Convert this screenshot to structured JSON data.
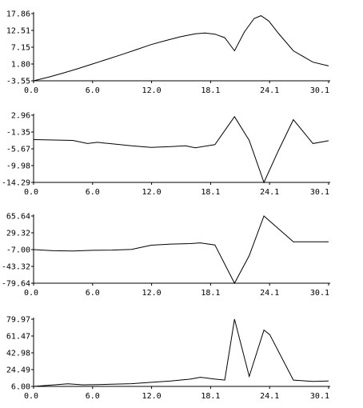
{
  "chart_data": [
    {
      "type": "line",
      "x_ticks": [
        "0.0",
        "6.0",
        "12.0",
        "18.1",
        "24.1",
        "30.1"
      ],
      "y_ticks": [
        "17.86",
        "12.51",
        "7.15",
        "1.80",
        "-3.55"
      ],
      "xlim": [
        0,
        30.1
      ],
      "ylim": [
        -3.55,
        17.86
      ],
      "series": [
        {
          "x": [
            0,
            1.5,
            3.0,
            4.5,
            6.0,
            7.5,
            9.0,
            10.5,
            12.0,
            13.5,
            15.0,
            16.5,
            17.5,
            18.5,
            19.5,
            20.5,
            21.5,
            22.5,
            23.2,
            24.0,
            25.0,
            26.5,
            28.5,
            30.1
          ],
          "y": [
            -3.55,
            -2.4,
            -1.1,
            0.3,
            1.8,
            3.3,
            4.8,
            6.4,
            8.0,
            9.3,
            10.5,
            11.4,
            11.7,
            11.3,
            10.2,
            6.0,
            12.0,
            16.3,
            17.2,
            15.5,
            11.5,
            6.0,
            2.4,
            1.2
          ]
        }
      ]
    },
    {
      "type": "line",
      "x_ticks": [
        "0.0",
        "6.0",
        "12.0",
        "18.1",
        "24.1",
        "30.1"
      ],
      "y_ticks": [
        "2.96",
        "-1.35",
        "-5.67",
        "-9.98",
        "-14.29"
      ],
      "xlim": [
        0,
        30.1
      ],
      "ylim": [
        -14.29,
        2.96
      ],
      "series": [
        {
          "x": [
            0,
            2.0,
            4.0,
            5.5,
            6.5,
            8.0,
            10.0,
            12.0,
            14.0,
            15.5,
            16.5,
            18.5,
            20.5,
            22.0,
            23.5,
            25.0,
            26.5,
            28.5,
            30.1
          ],
          "y": [
            -3.3,
            -3.4,
            -3.5,
            -4.3,
            -4.0,
            -4.4,
            -4.9,
            -5.3,
            -5.1,
            -4.9,
            -5.4,
            -4.6,
            2.6,
            -3.5,
            -14.29,
            -6.0,
            1.8,
            -4.3,
            -3.6
          ]
        }
      ]
    },
    {
      "type": "line",
      "x_ticks": [
        "0.0",
        "6.0",
        "12.0",
        "18.1",
        "24.1",
        "30.1"
      ],
      "y_ticks": [
        "65.64",
        "29.32",
        "-7.00",
        "-43.32",
        "-79.64"
      ],
      "xlim": [
        0,
        30.1
      ],
      "ylim": [
        -79.64,
        65.64
      ],
      "series": [
        {
          "x": [
            0,
            2.0,
            4.0,
            6.0,
            8.0,
            10.0,
            12.0,
            14.0,
            16.0,
            17.0,
            18.5,
            20.5,
            22.0,
            23.5,
            26.5,
            28.5,
            30.1
          ],
          "y": [
            -7.0,
            -9.5,
            -10.0,
            -8.5,
            -8.0,
            -6.5,
            2.5,
            5.0,
            6.0,
            7.5,
            3.0,
            -79.64,
            -20.0,
            65.64,
            10.0,
            10.0,
            10.0
          ]
        }
      ]
    },
    {
      "type": "line",
      "x_ticks": [
        "0.0",
        "6.0",
        "12.0",
        "18.1",
        "24.1",
        "30.1"
      ],
      "y_ticks": [
        "79.97",
        "61.47",
        "42.98",
        "24.49",
        "6.00"
      ],
      "xlim": [
        0,
        30.1
      ],
      "ylim": [
        6.0,
        79.97
      ],
      "series": [
        {
          "x": [
            0,
            1.5,
            3.5,
            5.0,
            6.5,
            8.0,
            10.0,
            12.0,
            14.0,
            16.0,
            17.0,
            18.5,
            19.5,
            20.5,
            22.0,
            23.5,
            24.1,
            26.5,
            28.5,
            30.1
          ],
          "y": [
            6.0,
            7.2,
            8.8,
            7.8,
            8.0,
            8.4,
            9.0,
            10.5,
            12.0,
            14.0,
            16.0,
            14.0,
            13.0,
            80.0,
            17.0,
            68.0,
            63.0,
            13.0,
            11.5,
            12.0
          ]
        }
      ]
    }
  ]
}
